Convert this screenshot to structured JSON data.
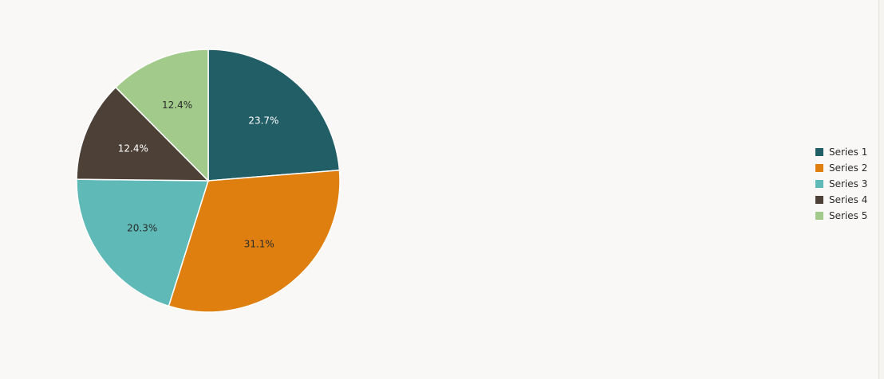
{
  "chart_data": {
    "type": "pie",
    "series": [
      {
        "name": "Series 1",
        "value": 23.7,
        "label": "23.7%",
        "color": "#225e66",
        "label_color": "#ffffff"
      },
      {
        "name": "Series 2",
        "value": 31.1,
        "label": "31.1%",
        "color": "#df7f10",
        "label_color": "#2b2b2b"
      },
      {
        "name": "Series 3",
        "value": 20.3,
        "label": "20.3%",
        "color": "#5fb9b6",
        "label_color": "#2b2b2b"
      },
      {
        "name": "Series 4",
        "value": 12.4,
        "label": "12.4%",
        "color": "#4d4037",
        "label_color": "#ffffff"
      },
      {
        "name": "Series 5",
        "value": 12.4,
        "label": "12.4%",
        "color": "#a2ca8b",
        "label_color": "#2b2b2b"
      }
    ],
    "start_angle_deg": 0,
    "direction": "clockwise",
    "legend_position": "right"
  },
  "colors": {
    "background": "#faf8f6",
    "slice_border": "#ffffff"
  }
}
